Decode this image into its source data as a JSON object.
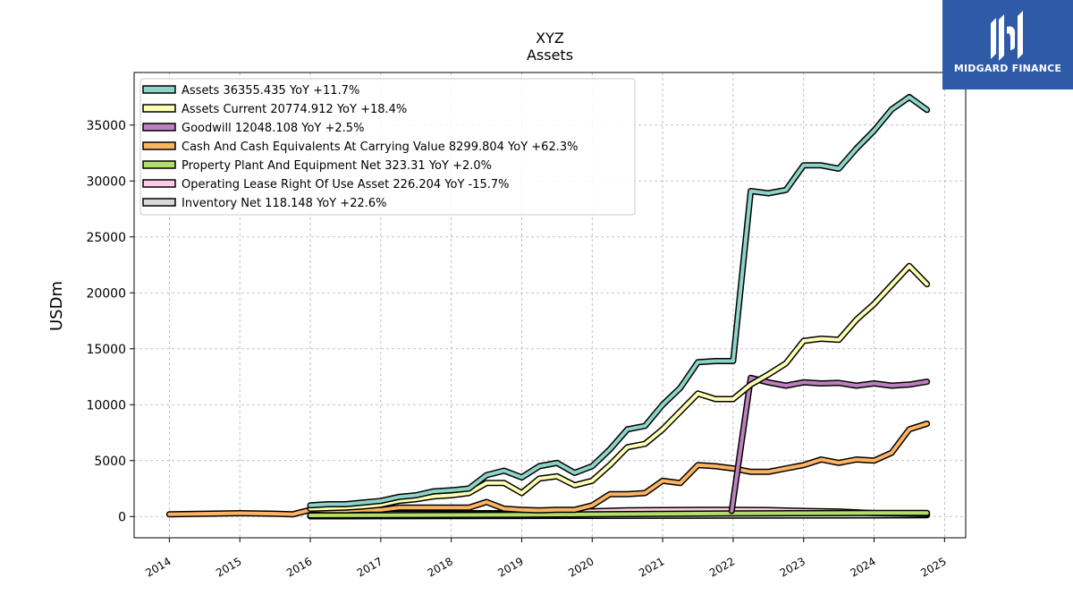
{
  "chart_data": {
    "type": "line",
    "title": "XYZ",
    "subtitle": "Assets",
    "ylabel": "USDm",
    "xlabel": "",
    "xlim": [
      2013.5,
      2025.3
    ],
    "ylim": [
      -1900,
      39700
    ],
    "xticks": [
      2014,
      2015,
      2016,
      2017,
      2018,
      2019,
      2020,
      2021,
      2022,
      2023,
      2024,
      2025
    ],
    "yticks": [
      0,
      5000,
      10000,
      15000,
      20000,
      25000,
      30000,
      35000
    ],
    "grid": true,
    "legend_position": "top-left",
    "series": [
      {
        "name": "Assets",
        "legend": "Assets  36355.435 YoY +11.7%",
        "color": "#8dd3c7",
        "x": [
          2016.0,
          2016.25,
          2016.5,
          2016.75,
          2017.0,
          2017.25,
          2017.5,
          2017.75,
          2018.0,
          2018.25,
          2018.5,
          2018.75,
          2019.0,
          2019.25,
          2019.5,
          2019.75,
          2020.0,
          2020.25,
          2020.5,
          2020.75,
          2021.0,
          2021.25,
          2021.5,
          2021.75,
          2022.0,
          2022.25,
          2022.5,
          2022.75,
          2023.0,
          2023.25,
          2023.5,
          2023.75,
          2024.0,
          2024.25,
          2024.5,
          2024.75
        ],
        "y": [
          1000,
          1100,
          1100,
          1250,
          1400,
          1750,
          1900,
          2250,
          2350,
          2500,
          3700,
          4100,
          3500,
          4500,
          4800,
          3900,
          4500,
          6000,
          7800,
          8100,
          10000,
          11500,
          13800,
          13900,
          13900,
          29100,
          28900,
          29200,
          31400,
          31400,
          31100,
          32900,
          34500,
          36400,
          37500,
          36355
        ]
      },
      {
        "name": "Assets Current",
        "legend": "Assets Current  20774.912 YoY +18.4%",
        "color": "#ffffb3",
        "x": [
          2016.0,
          2016.25,
          2016.5,
          2016.75,
          2017.0,
          2017.25,
          2017.5,
          2017.75,
          2018.0,
          2018.25,
          2018.5,
          2018.75,
          2019.0,
          2019.25,
          2019.5,
          2019.75,
          2020.0,
          2020.25,
          2020.5,
          2020.75,
          2021.0,
          2021.25,
          2021.5,
          2021.75,
          2022.0,
          2022.25,
          2022.5,
          2022.75,
          2023.0,
          2023.25,
          2023.5,
          2023.75,
          2024.0,
          2024.25,
          2024.5,
          2024.75
        ],
        "y": [
          700,
          750,
          800,
          900,
          1050,
          1400,
          1550,
          1800,
          1900,
          2100,
          3000,
          3000,
          2100,
          3400,
          3600,
          2800,
          3200,
          4600,
          6200,
          6500,
          7800,
          9400,
          11000,
          10500,
          10500,
          11800,
          12700,
          13700,
          15700,
          15900,
          15800,
          17600,
          19000,
          20700,
          22400,
          20775
        ]
      },
      {
        "name": "Goodwill",
        "legend": "Goodwill  12048.108 YoY +2.5%",
        "color": "#bc80bd",
        "x": [
          2021.98,
          2022.25,
          2022.5,
          2022.75,
          2023.0,
          2023.25,
          2023.5,
          2023.75,
          2024.0,
          2024.25,
          2024.5,
          2024.75
        ],
        "y": [
          500,
          12400,
          12000,
          11700,
          12000,
          11900,
          11950,
          11700,
          11900,
          11700,
          11800,
          12048
        ]
      },
      {
        "name": "Cash And Cash Equivalents At Carrying Value",
        "legend": "Cash And Cash Equivalents At Carrying Value  8299.804 YoY +62.3%",
        "color": "#fdb462",
        "x": [
          2014.0,
          2015.0,
          2015.5,
          2015.75,
          2016.0,
          2016.25,
          2016.5,
          2016.75,
          2017.0,
          2017.25,
          2017.5,
          2017.75,
          2018.0,
          2018.25,
          2018.5,
          2018.75,
          2019.0,
          2019.25,
          2019.5,
          2019.75,
          2020.0,
          2020.25,
          2020.5,
          2020.75,
          2021.0,
          2021.25,
          2021.5,
          2021.75,
          2022.0,
          2022.25,
          2022.5,
          2022.75,
          2023.0,
          2023.25,
          2023.5,
          2023.75,
          2024.0,
          2024.25,
          2024.5,
          2024.75
        ],
        "y": [
          200,
          300,
          250,
          200,
          600,
          550,
          550,
          600,
          600,
          800,
          800,
          800,
          800,
          800,
          1300,
          700,
          600,
          550,
          600,
          600,
          1000,
          2000,
          2000,
          2100,
          3200,
          3000,
          4600,
          4500,
          4300,
          4000,
          4000,
          4300,
          4600,
          5100,
          4800,
          5100,
          5000,
          5700,
          7800,
          8300
        ]
      },
      {
        "name": "Property Plant And Equipment Net",
        "legend": "Property Plant And Equipment Net  323.31 YoY +2.0%",
        "color": "#b3de69",
        "x": [
          2016.0,
          2016.5,
          2017.0,
          2017.5,
          2018.0,
          2018.5,
          2019.0,
          2019.5,
          2020.0,
          2020.5,
          2021.0,
          2021.5,
          2022.0,
          2022.5,
          2023.0,
          2023.5,
          2024.0,
          2024.5,
          2024.75
        ],
        "y": [
          100,
          110,
          120,
          130,
          140,
          150,
          160,
          180,
          200,
          220,
          240,
          260,
          280,
          290,
          300,
          310,
          315,
          320,
          323
        ]
      },
      {
        "name": "Operating Lease Right Of Use Asset",
        "legend": "Operating Lease Right Of Use Asset  226.204 YoY -15.7%",
        "color": "#fccde5",
        "x": [
          2019.0,
          2019.5,
          2020.0,
          2020.5,
          2021.0,
          2021.5,
          2022.0,
          2022.5,
          2023.0,
          2023.5,
          2024.0,
          2024.5,
          2024.75
        ],
        "y": [
          500,
          480,
          470,
          560,
          580,
          600,
          600,
          580,
          500,
          450,
          300,
          260,
          226
        ]
      },
      {
        "name": "Inventory Net",
        "legend": "Inventory Net  118.148 YoY +22.6%",
        "color": "#d9d9d9",
        "x": [
          2016.0,
          2017.0,
          2018.0,
          2019.0,
          2020.0,
          2021.0,
          2022.0,
          2023.0,
          2024.0,
          2024.75
        ],
        "y": [
          20,
          30,
          40,
          50,
          60,
          70,
          80,
          90,
          100,
          118
        ]
      }
    ],
    "filled_boxes": [
      {
        "series": "Assets",
        "x0": 2016.0,
        "x1": 2024.75,
        "y0": 0,
        "y1": 500,
        "color": "#d9d9d9"
      }
    ]
  },
  "brand": {
    "name": "MIDGARD FINANCE",
    "bg_color": "#2f5aa8"
  }
}
